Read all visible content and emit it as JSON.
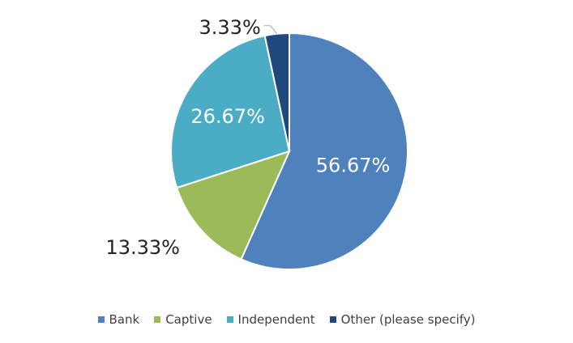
{
  "chart_data": {
    "type": "pie",
    "title": "",
    "categories": [
      "Bank",
      "Captive",
      "Independent",
      "Other (please specify)"
    ],
    "values": [
      56.67,
      13.33,
      26.67,
      3.33
    ],
    "labels": [
      "56.67%",
      "13.33%",
      "26.67%",
      "3.33%"
    ],
    "colors": [
      "#4f81bd",
      "#9bbb59",
      "#4bacc6",
      "#1f497d"
    ],
    "legend_placement": "bottom"
  }
}
